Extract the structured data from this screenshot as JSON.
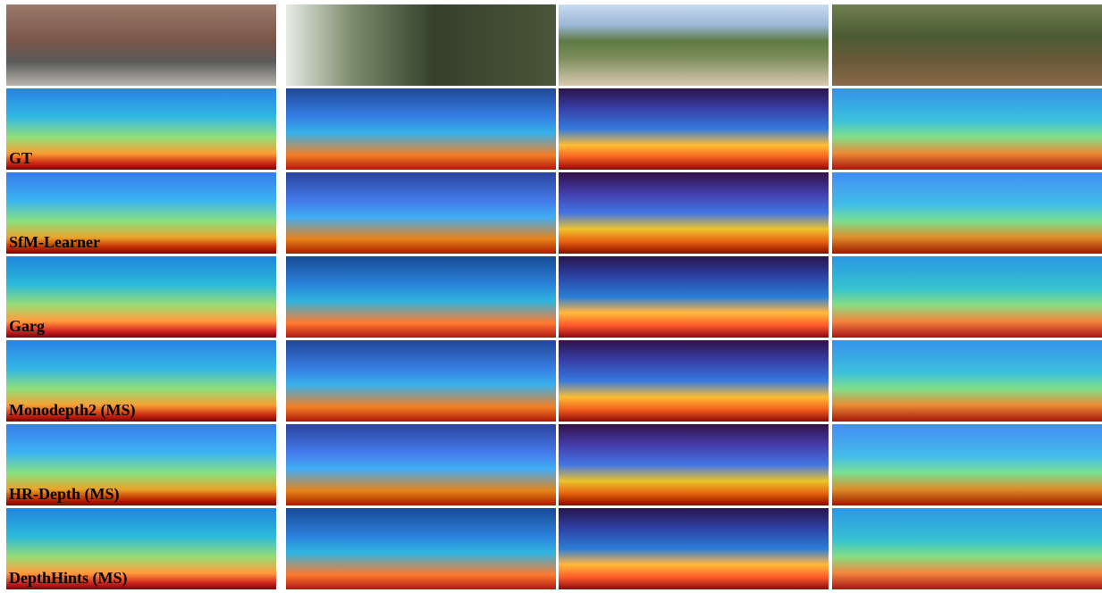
{
  "figure": {
    "row_labels": [
      "GT",
      "SfM-Learner",
      "Garg",
      "Monodepth2 (MS)",
      "HR-Depth (MS)",
      "DepthHints (MS)"
    ]
  }
}
